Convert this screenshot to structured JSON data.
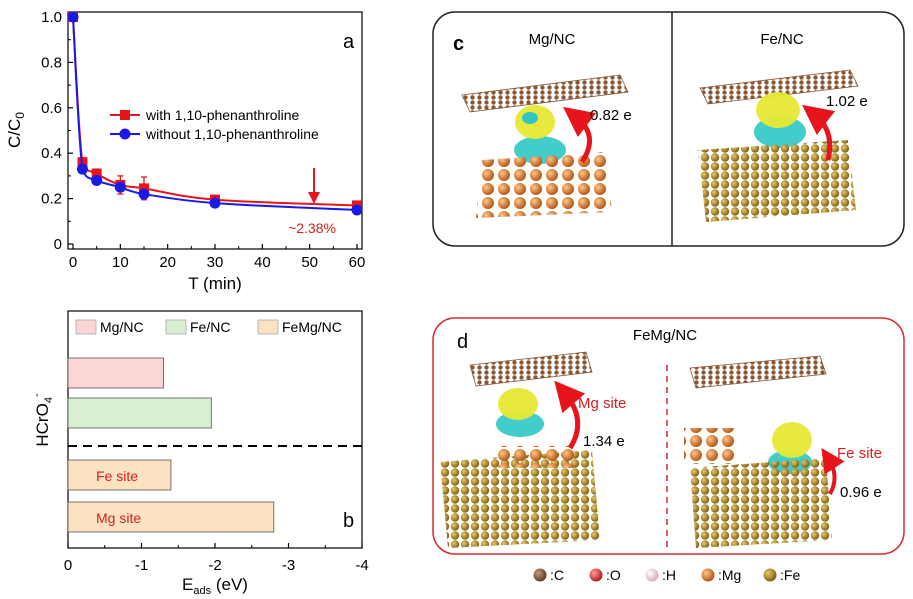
{
  "panel_a": {
    "label": "a",
    "ylabel_main": "C/C",
    "ylabel_sub": "0",
    "xlabel": "T (min)",
    "annotation": "~2.38%",
    "y_ticks": [
      "0",
      "0.2",
      "0.4",
      "0.6",
      "0.8",
      "1.0"
    ],
    "x_ticks": [
      "0",
      "10",
      "20",
      "30",
      "40",
      "50",
      "60"
    ]
  },
  "panel_b": {
    "label": "b",
    "ylabel_main": "HCrO",
    "ylabel_sub": "4",
    "ylabel_sup": "-",
    "xlabel_main": "E",
    "xlabel_sub": "ads",
    "xlabel_unit": " (eV)",
    "x_ticks": [
      "0",
      "-1",
      "-2",
      "-3",
      "-4"
    ],
    "bar_labels": [
      "Fe site",
      "Mg site"
    ]
  },
  "panel_c": {
    "label": "c",
    "left_title": "Mg/NC",
    "right_title": "Fe/NC",
    "left_charge": "0.82 e",
    "right_charge": "1.02 e"
  },
  "panel_d": {
    "label": "d",
    "title": "FeMg/NC",
    "left_site": "Mg site",
    "right_site": "Fe site",
    "left_charge": "1.34 e",
    "right_charge": "0.96 e"
  },
  "atom_legend": [
    {
      "label": ":C",
      "color": "#7a4a2a"
    },
    {
      "label": ":O",
      "color": "#e0363a"
    },
    {
      "label": ":H",
      "color": "#f2d4d8"
    },
    {
      "label": ":Mg",
      "color": "#d9741c"
    },
    {
      "label": ":Fe",
      "color": "#a8801e"
    }
  ],
  "colors": {
    "red_series": "#e8141c",
    "blue_series": "#1a1ae6",
    "annotation_red": "#d81e1e",
    "panel_d_border": "#d62c2c",
    "mg_bar": "#fcd6d6",
    "fe_bar": "#d9efd2",
    "femg_bar": "#fbe2c0"
  },
  "chart_data": [
    {
      "type": "line",
      "title": "",
      "xlabel": "T (min)",
      "ylabel": "C/C0",
      "xlim": [
        0,
        60
      ],
      "ylim": [
        0,
        1.0
      ],
      "grid": false,
      "legend_position": "middle-right",
      "series": [
        {
          "name": "with 1,10-phenanthroline",
          "color": "#e8141c",
          "marker": "square",
          "x": [
            0,
            2,
            5,
            10,
            15,
            30,
            60
          ],
          "y": [
            1.0,
            0.36,
            0.31,
            0.26,
            0.245,
            0.195,
            0.17
          ],
          "error": [
            0,
            0.02,
            0.02,
            0.04,
            0.05,
            0.02,
            0.01
          ]
        },
        {
          "name": "without 1,10-phenanthroline",
          "color": "#1a1ae6",
          "marker": "circle",
          "x": [
            0,
            2,
            5,
            10,
            15,
            30,
            60
          ],
          "y": [
            1.0,
            0.33,
            0.28,
            0.25,
            0.22,
            0.18,
            0.15
          ]
        }
      ],
      "annotation": "~2.38%"
    },
    {
      "type": "bar",
      "orientation": "horizontal",
      "title": "",
      "xlabel": "Eads (eV)",
      "ylabel": "HCrO4-",
      "xlim": [
        0,
        -4
      ],
      "legend_position": "top",
      "legend": [
        "Mg/NC",
        "Fe/NC",
        "FeMg/NC"
      ],
      "bars": [
        {
          "group": "Mg/NC",
          "label": "",
          "value": -1.3
        },
        {
          "group": "Fe/NC",
          "label": "",
          "value": -1.95
        },
        {
          "group": "FeMg/NC",
          "label": "Fe site",
          "value": -1.4
        },
        {
          "group": "FeMg/NC",
          "label": "Mg site",
          "value": -2.8
        }
      ]
    }
  ]
}
